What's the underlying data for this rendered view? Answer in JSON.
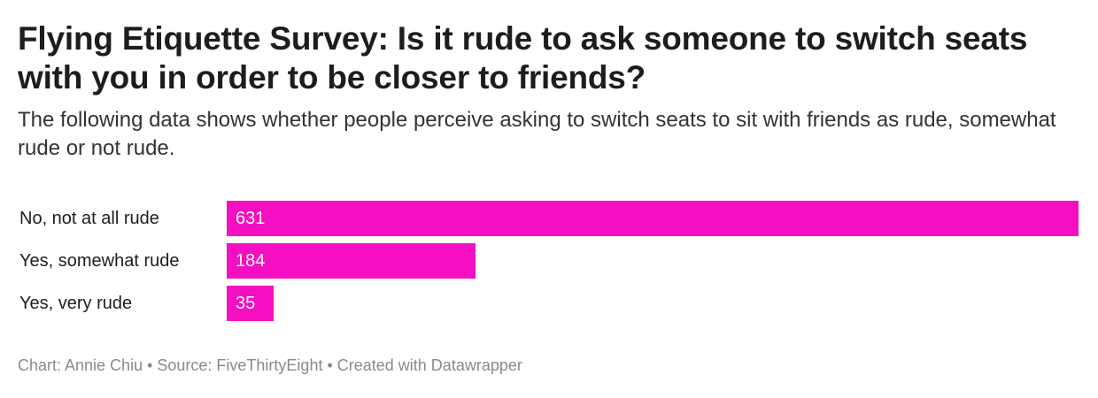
{
  "chart_data": {
    "type": "bar",
    "orientation": "horizontal",
    "title": "Flying Etiquette Survey: Is it rude to ask someone to switch seats with you in order to be closer to friends?",
    "subtitle": "The following data shows whether people perceive asking to switch seats to sit with friends as rude, somewhat rude or not rude.",
    "categories": [
      "No, not at all rude",
      "Yes, somewhat rude",
      "Yes, very rude"
    ],
    "values": [
      631,
      184,
      35
    ],
    "bar_color": "#f50ec2",
    "value_label_color": "#ffffff",
    "xlim": [
      0,
      631
    ]
  },
  "footer": {
    "text": "Chart: Annie Chiu • Source: FiveThirtyEight • Created with Datawrapper"
  }
}
